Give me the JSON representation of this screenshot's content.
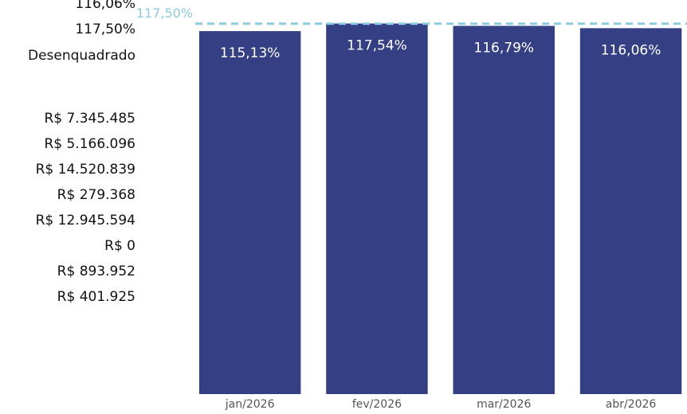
{
  "side_panel": {
    "lines": [
      "116,06%",
      "117,50%",
      "Desenquadrado",
      "R$ 7.345.485",
      "R$ 5.166.096",
      "R$ 14.520.839",
      "R$ 279.368",
      "R$ 12.945.594",
      "R$ 0",
      "R$ 893.952",
      "R$ 401.925"
    ]
  },
  "chart_data": {
    "type": "bar",
    "categories": [
      "jan/2026",
      "fev/2026",
      "mar/2026",
      "abr/2026"
    ],
    "values": [
      115.13,
      117.54,
      116.79,
      116.06
    ],
    "value_labels": [
      "115,13%",
      "117,54%",
      "116,79%",
      "116,06%"
    ],
    "color": "#343f84",
    "ylim": [
      0,
      125
    ],
    "reference": {
      "value": 117.5,
      "label": "117,50%",
      "color": "#8ccbe0"
    }
  }
}
